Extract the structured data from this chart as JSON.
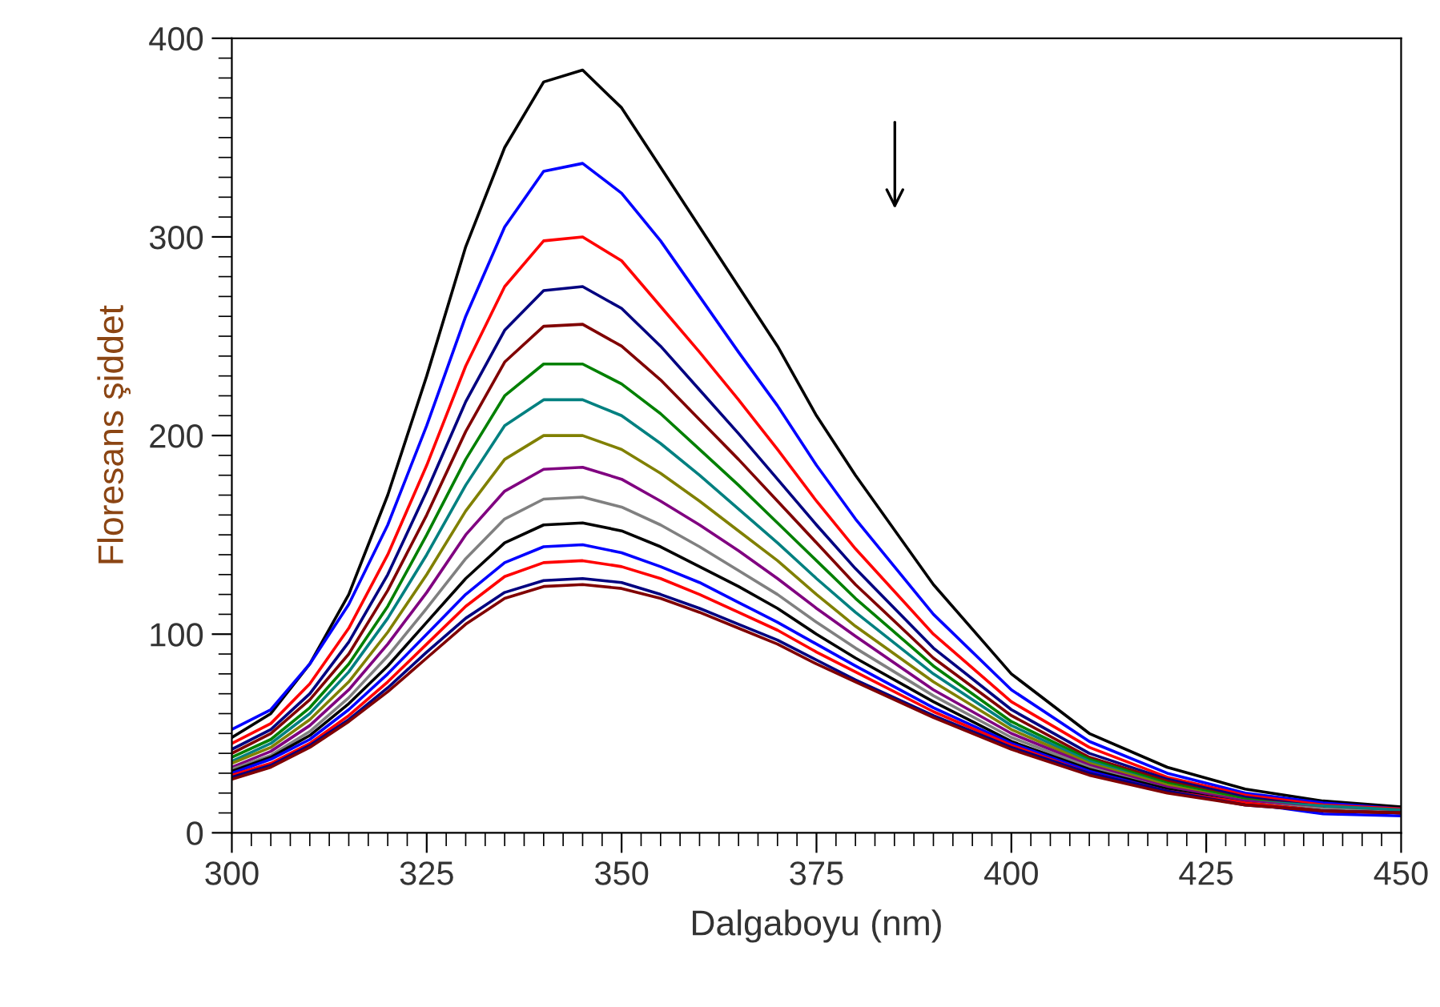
{
  "chart_data": {
    "type": "line",
    "xlabel": "Dalgaboyu (nm)",
    "ylabel": "Floresans şiddet",
    "x": [
      300,
      305,
      310,
      315,
      320,
      325,
      330,
      335,
      340,
      345,
      350,
      355,
      360,
      365,
      370,
      375,
      380,
      390,
      400,
      410,
      420,
      430,
      440,
      450
    ],
    "xlim": [
      300,
      450
    ],
    "xticks": [
      300,
      325,
      350,
      375,
      400,
      425,
      450
    ],
    "ylim": [
      0,
      400
    ],
    "yticks": [
      0,
      100,
      200,
      300,
      400
    ],
    "grid": false,
    "legend": false,
    "marker": "none",
    "line_style": "solid",
    "series": [
      {
        "color": "#000000",
        "values": [
          48,
          60,
          85,
          120,
          170,
          230,
          295,
          345,
          378,
          384,
          365,
          335,
          305,
          275,
          245,
          210,
          180,
          125,
          80,
          50,
          33,
          22,
          16,
          13
        ]
      },
      {
        "color": "#0000ff",
        "values": [
          52,
          62,
          85,
          115,
          155,
          205,
          260,
          305,
          333,
          337,
          322,
          298,
          270,
          242,
          215,
          185,
          158,
          110,
          72,
          46,
          30,
          20,
          15,
          12
        ]
      },
      {
        "color": "#ff0000",
        "values": [
          45,
          55,
          75,
          103,
          140,
          185,
          235,
          275,
          298,
          300,
          288,
          265,
          242,
          218,
          193,
          167,
          143,
          100,
          66,
          43,
          28,
          19,
          14,
          12
        ]
      },
      {
        "color": "#000080",
        "values": [
          42,
          52,
          70,
          96,
          130,
          172,
          217,
          253,
          273,
          275,
          264,
          245,
          223,
          201,
          178,
          155,
          133,
          93,
          62,
          40,
          27,
          18,
          13,
          11
        ]
      },
      {
        "color": "#800000",
        "values": [
          40,
          50,
          67,
          90,
          122,
          160,
          202,
          237,
          255,
          256,
          245,
          228,
          208,
          188,
          167,
          146,
          125,
          88,
          59,
          38,
          26,
          17,
          13,
          11
        ]
      },
      {
        "color": "#008000",
        "values": [
          38,
          47,
          63,
          85,
          114,
          150,
          188,
          220,
          236,
          236,
          226,
          211,
          193,
          175,
          156,
          137,
          118,
          84,
          56,
          37,
          25,
          17,
          12,
          10
        ]
      },
      {
        "color": "#008080",
        "values": [
          36,
          45,
          60,
          81,
          108,
          140,
          175,
          205,
          218,
          218,
          210,
          196,
          180,
          163,
          146,
          128,
          111,
          80,
          54,
          36,
          24,
          16,
          13.5,
          11.5
        ]
      },
      {
        "color": "#808000",
        "values": [
          35,
          43,
          57,
          76,
          101,
          130,
          162,
          188,
          200,
          200,
          193,
          181,
          167,
          152,
          137,
          120,
          104,
          76,
          52,
          35,
          24,
          16,
          12,
          10
        ]
      },
      {
        "color": "#800080",
        "values": [
          33,
          41,
          54,
          72,
          95,
          121,
          150,
          172,
          183,
          184,
          178,
          167,
          155,
          142,
          128,
          113,
          99,
          72,
          50,
          34,
          23,
          16,
          12,
          10
        ]
      },
      {
        "color": "#808080",
        "values": [
          32,
          39,
          51,
          68,
          89,
          113,
          138,
          158,
          168,
          169,
          164,
          155,
          144,
          132,
          120,
          106,
          93,
          69,
          48,
          33,
          22,
          15,
          12,
          10
        ]
      },
      {
        "color": "#000000",
        "values": [
          31,
          38,
          49,
          65,
          84,
          106,
          128,
          146,
          155,
          156,
          152,
          144,
          134,
          124,
          113,
          100,
          88,
          66,
          46,
          32,
          22,
          15,
          11,
          10
        ]
      },
      {
        "color": "#0000ff",
        "values": [
          30,
          37,
          47,
          62,
          80,
          100,
          120,
          136,
          144,
          145,
          141,
          134,
          126,
          116,
          106,
          95,
          84,
          63,
          45,
          31,
          21,
          15,
          9.5,
          8.5
        ]
      },
      {
        "color": "#ff0000",
        "values": [
          29,
          35,
          45,
          59,
          76,
          95,
          114,
          129,
          136,
          137,
          134,
          128,
          120,
          111,
          102,
          91,
          81,
          61,
          44,
          30,
          21,
          15,
          11,
          10
        ]
      },
      {
        "color": "#000080",
        "values": [
          28,
          34,
          44,
          57,
          73,
          91,
          108,
          121,
          127,
          128,
          126,
          120,
          113,
          105,
          97,
          87,
          77,
          59,
          43,
          30,
          21,
          14,
          11,
          10
        ]
      },
      {
        "color": "#800000",
        "values": [
          27,
          33,
          43,
          56,
          71,
          88,
          105,
          118,
          124,
          125,
          123,
          118,
          111,
          103,
          95,
          85,
          76,
          58,
          42,
          29,
          20,
          14,
          11,
          10
        ]
      }
    ]
  }
}
